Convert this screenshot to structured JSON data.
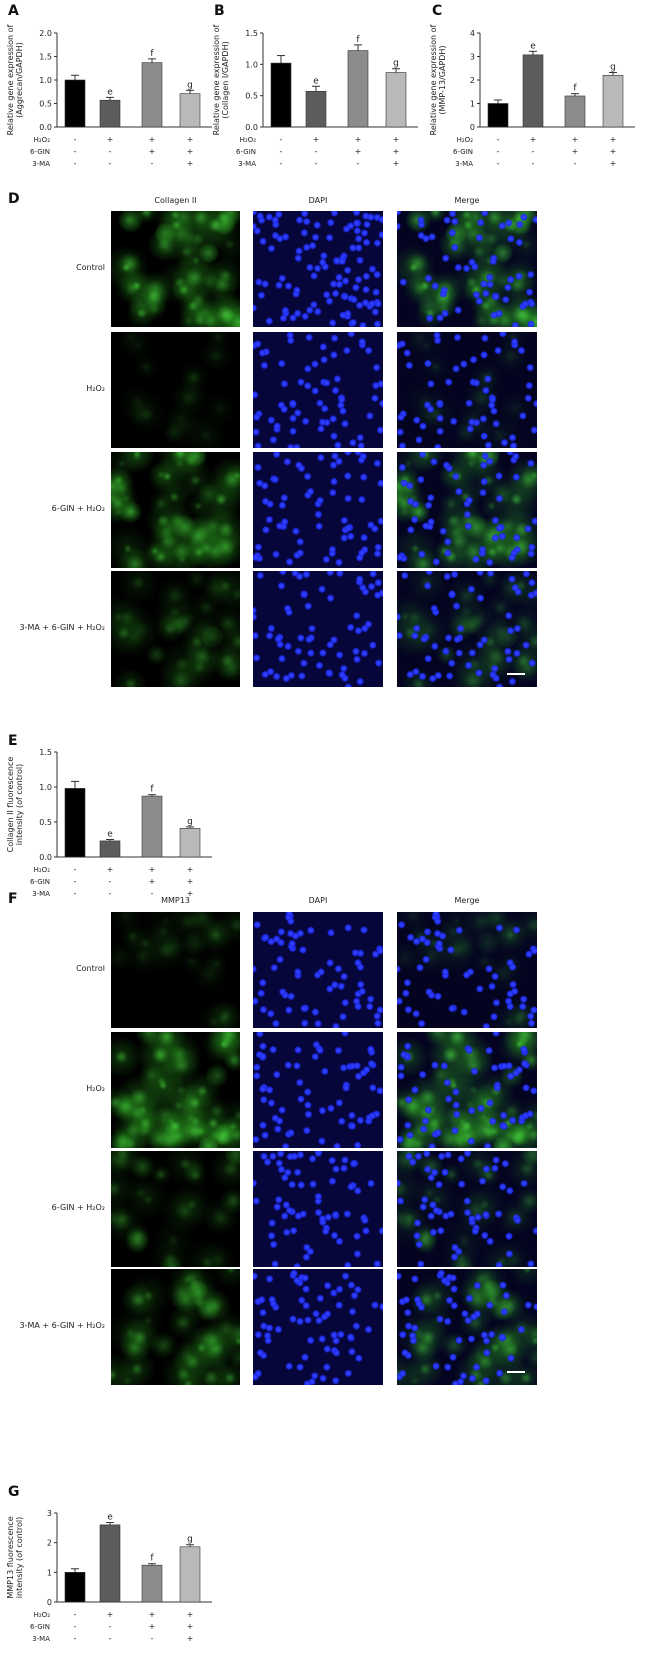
{
  "bar_colors": [
    "#000000",
    "#5c5c5c",
    "#8c8c8c",
    "#b9b9b9"
  ],
  "treatment_rows": [
    {
      "label": "H₂O₂",
      "signs": [
        "-",
        "+",
        "+",
        "+"
      ]
    },
    {
      "label": "6-GIN",
      "signs": [
        "-",
        "-",
        "+",
        "+"
      ]
    },
    {
      "label": "3-MA",
      "signs": [
        "-",
        "-",
        "-",
        "+"
      ]
    }
  ],
  "chart_data": [
    {
      "panel": "A",
      "type": "bar",
      "ylabel": [
        "Relative gene expression of",
        "(Aggrecan/GAPDH)"
      ],
      "ylim": [
        0,
        2.0
      ],
      "yticks": [
        "0.0",
        "0.5",
        "1.0",
        "1.5",
        "2.0"
      ],
      "tick_values": [
        0,
        0.5,
        1.0,
        1.5,
        2.0
      ],
      "values": [
        1.0,
        0.57,
        1.37,
        0.71
      ],
      "errors": [
        0.1,
        0.06,
        0.08,
        0.07
      ],
      "sig": [
        "",
        "e",
        "f",
        "g"
      ]
    },
    {
      "panel": "B",
      "type": "bar",
      "ylabel": [
        "Relative gene expression of",
        "(Collagen I/GAPDH)"
      ],
      "ylim": [
        0,
        1.5
      ],
      "yticks": [
        "0.0",
        "0.5",
        "1.0",
        "1.5"
      ],
      "tick_values": [
        0,
        0.5,
        1.0,
        1.5
      ],
      "values": [
        1.02,
        0.57,
        1.22,
        0.87
      ],
      "errors": [
        0.12,
        0.08,
        0.09,
        0.06
      ],
      "sig": [
        "",
        "e",
        "f",
        "g"
      ]
    },
    {
      "panel": "C",
      "type": "bar",
      "ylabel": [
        "Relative gene expression of",
        "(MMP-13/GAPDH)"
      ],
      "ylim": [
        0,
        4
      ],
      "yticks": [
        "0",
        "1",
        "2",
        "3",
        "4"
      ],
      "tick_values": [
        0,
        1,
        2,
        3,
        4
      ],
      "values": [
        1.0,
        3.07,
        1.32,
        2.2
      ],
      "errors": [
        0.15,
        0.15,
        0.1,
        0.12
      ],
      "sig": [
        "",
        "e",
        "f",
        "g"
      ]
    },
    {
      "panel": "E",
      "type": "bar",
      "ylabel": [
        "Collagen II fluorescence",
        "intensity (of control)"
      ],
      "ylim": [
        0,
        1.5
      ],
      "yticks": [
        "0.0",
        "0.5",
        "1.0",
        "1.5"
      ],
      "tick_values": [
        0,
        0.5,
        1.0,
        1.5
      ],
      "values": [
        0.98,
        0.23,
        0.87,
        0.41
      ],
      "errors": [
        0.1,
        0.02,
        0.02,
        0.02
      ],
      "sig": [
        "",
        "e",
        "f",
        "g"
      ]
    },
    {
      "panel": "G",
      "type": "bar",
      "ylabel": [
        "MMP13 fluorescence",
        "intensity (of control)"
      ],
      "ylim": [
        0,
        3
      ],
      "yticks": [
        "0",
        "1",
        "2",
        "3"
      ],
      "tick_values": [
        0,
        1,
        2,
        3
      ],
      "values": [
        1.0,
        2.6,
        1.24,
        1.86
      ],
      "errors": [
        0.12,
        0.08,
        0.05,
        0.07
      ],
      "sig": [
        "",
        "e",
        "f",
        "g"
      ]
    }
  ],
  "panel_D": {
    "label": "D",
    "columns": [
      "Collagen II",
      "DAPI",
      "Merge"
    ],
    "rows": [
      "Control",
      "H₂O₂",
      "6-GIN + H₂O₂",
      "3-MA + 6-GIN + H₂O₂"
    ]
  },
  "panel_F": {
    "label": "F",
    "columns": [
      "MMP13",
      "DAPI",
      "Merge"
    ],
    "rows": [
      "Control",
      "H₂O₂",
      "6-GIN + H₂O₂",
      "3-MA + 6-GIN + H₂O₂"
    ]
  }
}
